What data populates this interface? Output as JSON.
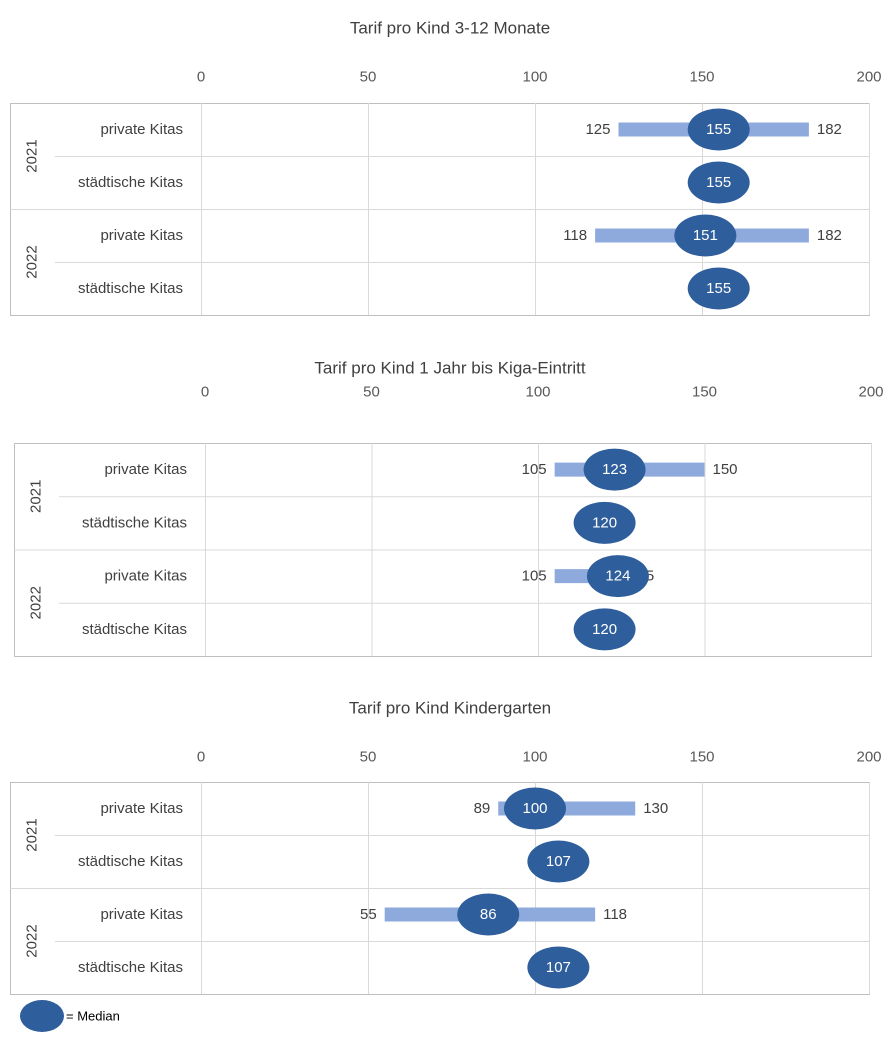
{
  "colors": {
    "range_bar": "#8EA9DB",
    "median": "#2E5E9B",
    "grid": "#D9D9D9",
    "frame": "#BFBFBF"
  },
  "legend": {
    "label": "= Median"
  },
  "chart_data": [
    {
      "type": "range-median",
      "title": "Tarif pro Kind 3-12 Monate",
      "xlim": [
        0,
        200
      ],
      "ticks": [
        "0",
        "50",
        "100",
        "150",
        "200"
      ],
      "groups": [
        "2021",
        "2022"
      ],
      "rows": [
        {
          "group": "2021",
          "category": "private Kitas",
          "min": 125,
          "median": 155,
          "max": 182
        },
        {
          "group": "2021",
          "category": "städtische Kitas",
          "median": 155
        },
        {
          "group": "2022",
          "category": "private Kitas",
          "min": 118,
          "median": 151,
          "max": 182
        },
        {
          "group": "2022",
          "category": "städtische Kitas",
          "median": 155
        }
      ]
    },
    {
      "type": "range-median",
      "title": "Tarif pro Kind 1 Jahr bis Kiga-Eintritt",
      "xlim": [
        0,
        200
      ],
      "ticks": [
        "0",
        "50",
        "100",
        "150",
        "200"
      ],
      "groups": [
        "2021",
        "2022"
      ],
      "rows": [
        {
          "group": "2021",
          "category": "private Kitas",
          "min": 105,
          "median": 123,
          "max": 150
        },
        {
          "group": "2021",
          "category": "städtische Kitas",
          "median": 120
        },
        {
          "group": "2022",
          "category": "private Kitas",
          "min": 105,
          "median": 124,
          "max": 125
        },
        {
          "group": "2022",
          "category": "städtische Kitas",
          "median": 120
        }
      ]
    },
    {
      "type": "range-median",
      "title": "Tarif pro Kind Kindergarten",
      "xlim": [
        0,
        200
      ],
      "ticks": [
        "0",
        "50",
        "100",
        "150",
        "200"
      ],
      "groups": [
        "2021",
        "2022"
      ],
      "rows": [
        {
          "group": "2021",
          "category": "private Kitas",
          "min": 89,
          "median": 100,
          "max": 130
        },
        {
          "group": "2021",
          "category": "städtische Kitas",
          "median": 107
        },
        {
          "group": "2022",
          "category": "private Kitas",
          "min": 55,
          "median": 86,
          "max": 118
        },
        {
          "group": "2022",
          "category": "städtische Kitas",
          "median": 107
        }
      ]
    }
  ]
}
